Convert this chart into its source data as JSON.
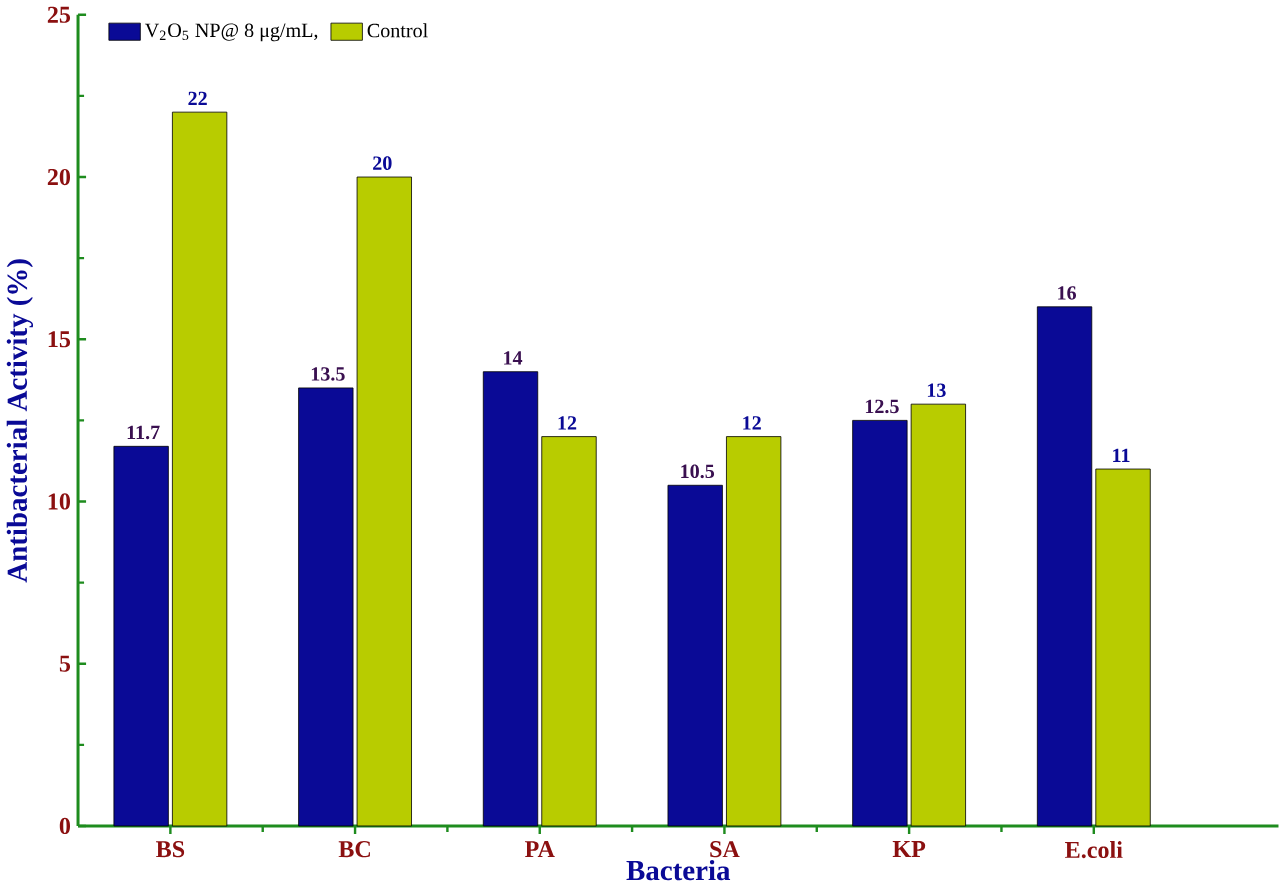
{
  "chart_data": {
    "type": "bar",
    "xlabel": "Bacteria",
    "ylabel": "Antibacterial Activity (%)",
    "categories": [
      "BS",
      "BC",
      "PA",
      "SA",
      "KP",
      "E.coli"
    ],
    "series": [
      {
        "name": "V$_{2}$O$_{5}$ NP@ 8 μg/mL,",
        "color": "#0a0a96",
        "values": [
          11.7,
          13.5,
          14,
          10.5,
          12.5,
          16
        ]
      },
      {
        "name": "Control",
        "color": "#b8cc00",
        "values": [
          22,
          20,
          12,
          12,
          13,
          11
        ]
      }
    ],
    "ylim": [
      0,
      25
    ],
    "yticks": [
      0,
      5,
      10,
      15,
      20,
      25
    ],
    "data_labels": true,
    "legend": "top left",
    "grid": false
  }
}
